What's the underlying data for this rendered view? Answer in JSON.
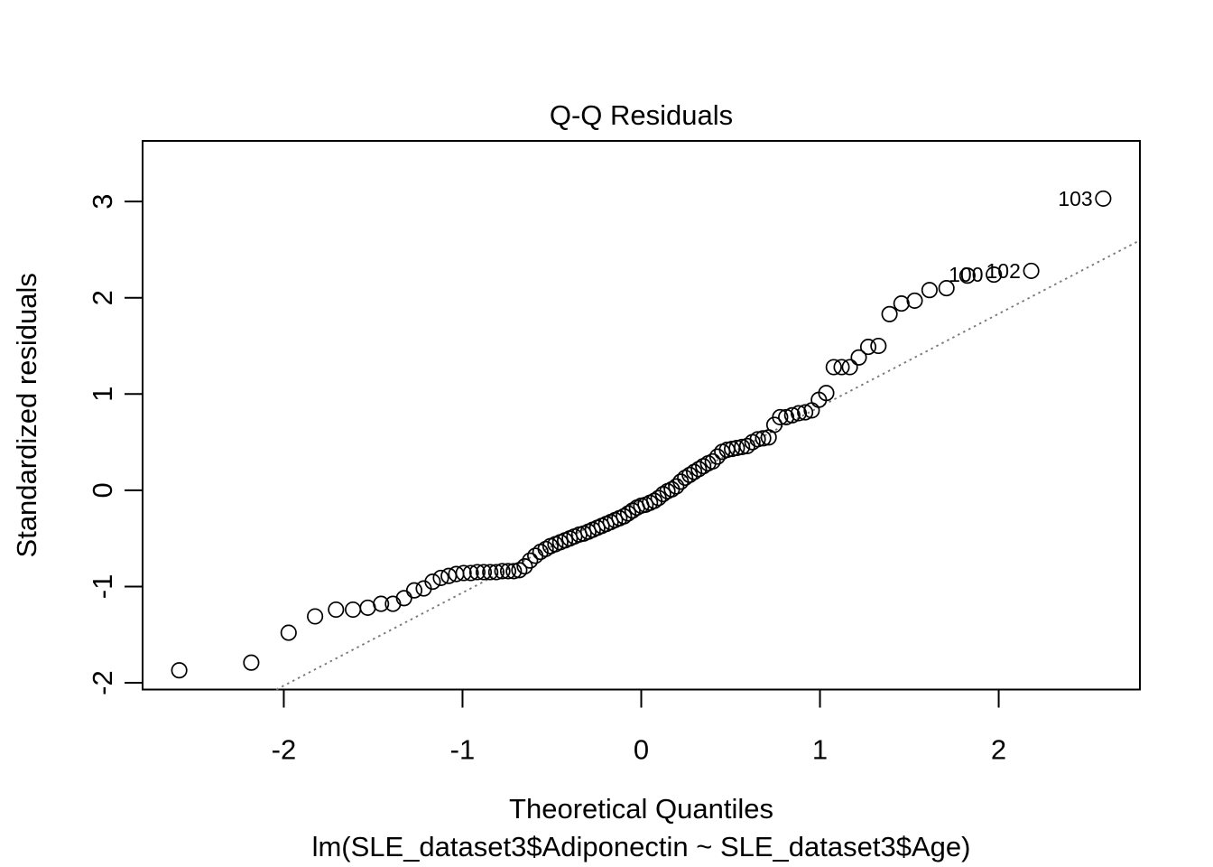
{
  "title": "Q-Q Residuals",
  "x_axis": {
    "label": "Theoretical Quantiles",
    "tick_labels": [
      "-2",
      "-1",
      "0",
      "1",
      "2"
    ]
  },
  "y_axis": {
    "label": "Standardized residuals",
    "tick_labels": [
      "-2",
      "-1",
      "0",
      "1",
      "2",
      "3"
    ]
  },
  "caption": "lm(SLE_dataset3$Adiponectin ~ SLE_dataset3$Age)",
  "colors": {
    "foreground": "#000000",
    "background": "#ffffff",
    "reference_line": "#7a7a7a"
  },
  "chart_data": {
    "type": "scatter",
    "title": "Q-Q Residuals",
    "xlabel": "Theoretical Quantiles",
    "ylabel": "Standardized residuals",
    "subtitle": "lm(SLE_dataset3$Adiponectin ~ SLE_dataset3$Age)",
    "xlim": [
      -2.79,
      2.79
    ],
    "ylim": [
      -2.07,
      3.63
    ],
    "x_ticks": [
      -2,
      -1,
      0,
      1,
      2
    ],
    "y_ticks": [
      -2,
      -1,
      0,
      1,
      2,
      3
    ],
    "grid": false,
    "legend": null,
    "point_style": {
      "marker": "open-circle",
      "color": "#000000",
      "radius_px": 8.2
    },
    "reference_line": {
      "style": "dotted",
      "color": "#7a7a7a",
      "slope": 0.966,
      "intercept": -0.098
    },
    "points": [
      [
        -2.585,
        -1.87
      ],
      [
        -2.182,
        -1.79
      ],
      [
        -1.973,
        -1.48
      ],
      [
        -1.825,
        -1.31
      ],
      [
        -1.708,
        -1.24
      ],
      [
        -1.613,
        -1.24
      ],
      [
        -1.53,
        -1.22
      ],
      [
        -1.456,
        -1.18
      ],
      [
        -1.389,
        -1.18
      ],
      [
        -1.327,
        -1.12
      ],
      [
        -1.27,
        -1.04
      ],
      [
        -1.217,
        -1.02
      ],
      [
        -1.167,
        -0.95
      ],
      [
        -1.121,
        -0.91
      ],
      [
        -1.077,
        -0.89
      ],
      [
        -1.035,
        -0.87
      ],
      [
        -0.994,
        -0.86
      ],
      [
        -0.954,
        -0.86
      ],
      [
        -0.917,
        -0.85
      ],
      [
        -0.881,
        -0.85
      ],
      [
        -0.845,
        -0.85
      ],
      [
        -0.811,
        -0.85
      ],
      [
        -0.777,
        -0.84
      ],
      [
        -0.745,
        -0.84
      ],
      [
        -0.713,
        -0.84
      ],
      [
        -0.682,
        -0.83
      ],
      [
        -0.652,
        -0.79
      ],
      [
        -0.622,
        -0.73
      ],
      [
        -0.593,
        -0.68
      ],
      [
        -0.564,
        -0.64
      ],
      [
        -0.535,
        -0.61
      ],
      [
        -0.508,
        -0.58
      ],
      [
        -0.48,
        -0.56
      ],
      [
        -0.453,
        -0.54
      ],
      [
        -0.426,
        -0.52
      ],
      [
        -0.4,
        -0.5
      ],
      [
        -0.374,
        -0.48
      ],
      [
        -0.347,
        -0.46
      ],
      [
        -0.322,
        -0.45
      ],
      [
        -0.296,
        -0.43
      ],
      [
        -0.271,
        -0.41
      ],
      [
        -0.246,
        -0.39
      ],
      [
        -0.221,
        -0.37
      ],
      [
        -0.196,
        -0.35
      ],
      [
        -0.171,
        -0.33
      ],
      [
        -0.147,
        -0.31
      ],
      [
        -0.122,
        -0.29
      ],
      [
        -0.097,
        -0.27
      ],
      [
        -0.073,
        -0.24
      ],
      [
        -0.049,
        -0.21
      ],
      [
        -0.024,
        -0.18
      ],
      [
        0.0,
        -0.16
      ],
      [
        0.024,
        -0.15
      ],
      [
        0.049,
        -0.13
      ],
      [
        0.073,
        -0.11
      ],
      [
        0.097,
        -0.08
      ],
      [
        0.122,
        -0.04
      ],
      [
        0.147,
        -0.01
      ],
      [
        0.171,
        0.01
      ],
      [
        0.196,
        0.04
      ],
      [
        0.221,
        0.09
      ],
      [
        0.246,
        0.13
      ],
      [
        0.271,
        0.16
      ],
      [
        0.296,
        0.19
      ],
      [
        0.322,
        0.22
      ],
      [
        0.347,
        0.25
      ],
      [
        0.374,
        0.28
      ],
      [
        0.4,
        0.3
      ],
      [
        0.426,
        0.35
      ],
      [
        0.453,
        0.4
      ],
      [
        0.48,
        0.42
      ],
      [
        0.508,
        0.43
      ],
      [
        0.535,
        0.44
      ],
      [
        0.564,
        0.45
      ],
      [
        0.593,
        0.46
      ],
      [
        0.622,
        0.5
      ],
      [
        0.652,
        0.53
      ],
      [
        0.682,
        0.54
      ],
      [
        0.713,
        0.55
      ],
      [
        0.745,
        0.68
      ],
      [
        0.777,
        0.76
      ],
      [
        0.811,
        0.76
      ],
      [
        0.845,
        0.78
      ],
      [
        0.881,
        0.8
      ],
      [
        0.917,
        0.81
      ],
      [
        0.954,
        0.83
      ],
      [
        0.994,
        0.94
      ],
      [
        1.035,
        1.01
      ],
      [
        1.077,
        1.28
      ],
      [
        1.121,
        1.28
      ],
      [
        1.167,
        1.28
      ],
      [
        1.217,
        1.38
      ],
      [
        1.27,
        1.49
      ],
      [
        1.327,
        1.5
      ],
      [
        1.389,
        1.83
      ],
      [
        1.456,
        1.94
      ],
      [
        1.53,
        1.97
      ],
      [
        1.613,
        2.08
      ],
      [
        1.708,
        2.1
      ],
      [
        1.825,
        2.23
      ],
      [
        1.973,
        2.24
      ],
      [
        2.182,
        2.28
      ],
      [
        2.585,
        3.03
      ]
    ],
    "labeled_points": [
      {
        "label": "100",
        "x": 1.973,
        "y": 2.24
      },
      {
        "label": "102",
        "x": 2.182,
        "y": 2.28
      },
      {
        "label": "103",
        "x": 2.585,
        "y": 3.03
      }
    ]
  }
}
